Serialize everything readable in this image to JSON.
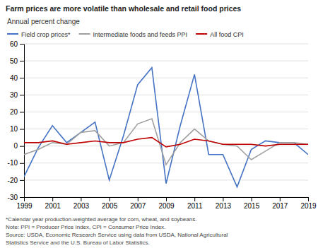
{
  "chart_data": {
    "type": "line",
    "title": "Farm prices are more volatile than wholesale and retail food prices",
    "ylabel": "Annual percent change",
    "x": [
      1999,
      2000,
      2001,
      2002,
      2003,
      2004,
      2005,
      2006,
      2007,
      2008,
      2009,
      2010,
      2011,
      2012,
      2013,
      2014,
      2015,
      2016,
      2017,
      2018,
      2019
    ],
    "series": [
      {
        "name": "Field crop prices*",
        "color": "#4472c4",
        "values": [
          -18,
          -1,
          12,
          2,
          8,
          14,
          -20,
          6,
          36,
          46,
          -22,
          12,
          42,
          -5,
          -5,
          -24,
          -2,
          3,
          2,
          2,
          -5
        ]
      },
      {
        "name": "Intermediate foods and feeds PPI",
        "color": "#a0a0a0",
        "values": [
          -5,
          -2,
          2,
          1,
          8,
          9,
          0,
          2,
          13,
          16,
          -11,
          2,
          10,
          3,
          1,
          0,
          -8,
          -3,
          2,
          2,
          1
        ]
      },
      {
        "name": "All food CPI",
        "color": "#c00000",
        "values": [
          2,
          2,
          3,
          1,
          2,
          3,
          2,
          2,
          4,
          5,
          -0.5,
          1,
          4,
          3,
          1,
          1,
          1,
          0,
          1,
          1,
          1
        ]
      }
    ],
    "xlim": [
      1999,
      2019
    ],
    "xticks": [
      1999,
      2001,
      2003,
      2005,
      2007,
      2009,
      2011,
      2013,
      2015,
      2017,
      2019
    ],
    "ylim": [
      -30,
      60
    ],
    "yticks": [
      -30,
      -20,
      -10,
      0,
      10,
      20,
      30,
      40,
      50,
      60
    ],
    "grid": true,
    "legend": "upper left",
    "footnotes": [
      "*Calendar year production-weighted average for corn, wheat, and soybeans.",
      "Note: PPI = Producer Price Index, CPI = Consumer Price Index.",
      "Source: USDA, Economic Research Service using data from USDA, National Agricultural",
      "Statistics Service and the U.S. Bureau of Labor Statistics."
    ]
  }
}
